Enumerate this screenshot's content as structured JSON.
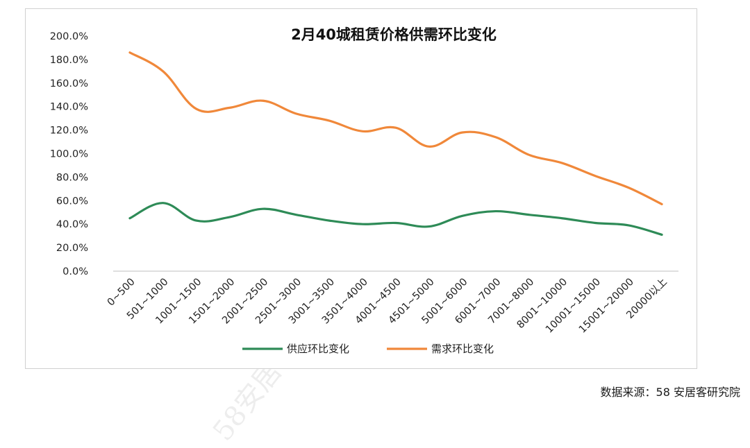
{
  "watermark": "58安居客研究院",
  "source": "数据来源：58 安居客研究院",
  "colors": {
    "supply": "#2e8b57",
    "demand": "#f0883a",
    "axis": "#bfbfbf"
  },
  "chart_data": {
    "type": "line",
    "title": "2月40城租赁价格供需环比变化",
    "categories": [
      "0~500",
      "501~1000",
      "1001~1500",
      "1501~2000",
      "2001~2500",
      "2501~3000",
      "3001~3500",
      "3501~4000",
      "4001~4500",
      "4501~5000",
      "5001~6000",
      "6001~7000",
      "7001~8000",
      "8001~10000",
      "10001~15000",
      "15001~20000",
      "20000以上"
    ],
    "series": [
      {
        "name": "供应环比变化",
        "color": "#2e8b57",
        "values": [
          45,
          58,
          43,
          46,
          53,
          48,
          43,
          40,
          41,
          38,
          47,
          51,
          48,
          45,
          41,
          39,
          31
        ]
      },
      {
        "name": "需求环比变化",
        "color": "#f0883a",
        "values": [
          186,
          170,
          138,
          139,
          145,
          134,
          128,
          119,
          122,
          106,
          118,
          114,
          99,
          92,
          81,
          71,
          57
        ]
      }
    ],
    "ylim": [
      0,
      200
    ],
    "yticks": [
      "0.0%",
      "20.0%",
      "40.0%",
      "60.0%",
      "80.0%",
      "100.0%",
      "120.0%",
      "140.0%",
      "160.0%",
      "180.0%",
      "200.0%"
    ],
    "legend": "bottom",
    "grid": false
  }
}
